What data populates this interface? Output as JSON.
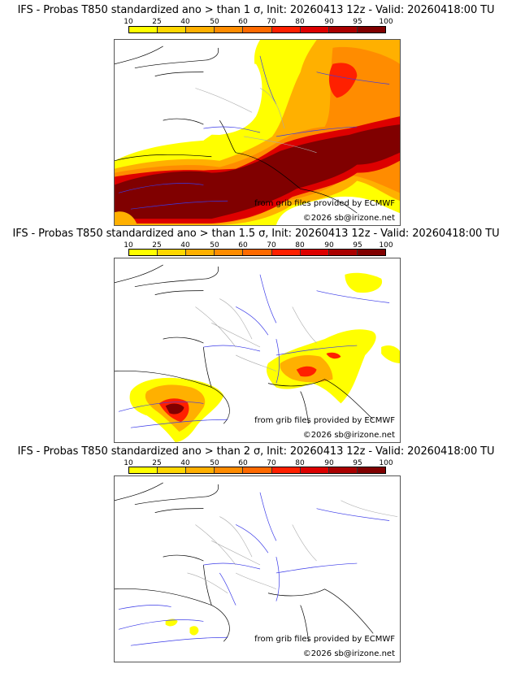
{
  "panels": [
    {
      "title": "IFS - Probas T850  standardized ano > than 1 σ, Init: 20260413 12z - Valid: 20260418:00 TU",
      "threshold_sigma": "1",
      "credit_source": "from grib files provided by ECMWF",
      "credit_copyright": "©2026 sb@irizone.net"
    },
    {
      "title": "IFS - Probas T850  standardized ano > than 1.5 σ, Init: 20260413 12z - Valid: 20260418:00 TU",
      "threshold_sigma": "1.5",
      "credit_source": "from grib files provided by ECMWF",
      "credit_copyright": "©2026 sb@irizone.net"
    },
    {
      "title": "IFS - Probas T850  standardized ano > than 2 σ, Init: 20260413 12z - Valid: 20260418:00 TU",
      "threshold_sigma": "2",
      "credit_source": "from grib files provided by ECMWF",
      "credit_copyright": "©2026 sb@irizone.net"
    }
  ],
  "colorbar": {
    "ticks": [
      "10",
      "25",
      "40",
      "50",
      "60",
      "70",
      "80",
      "90",
      "95",
      "100"
    ],
    "colors": [
      "#ffff00",
      "#ffd700",
      "#ffb000",
      "#ff8c00",
      "#ff6a00",
      "#ff2000",
      "#dd0000",
      "#aa0000",
      "#800000"
    ]
  },
  "map_colors": {
    "coast": "#000000",
    "rivers": "#3a3ae8",
    "borders": "#aaaaaa"
  }
}
